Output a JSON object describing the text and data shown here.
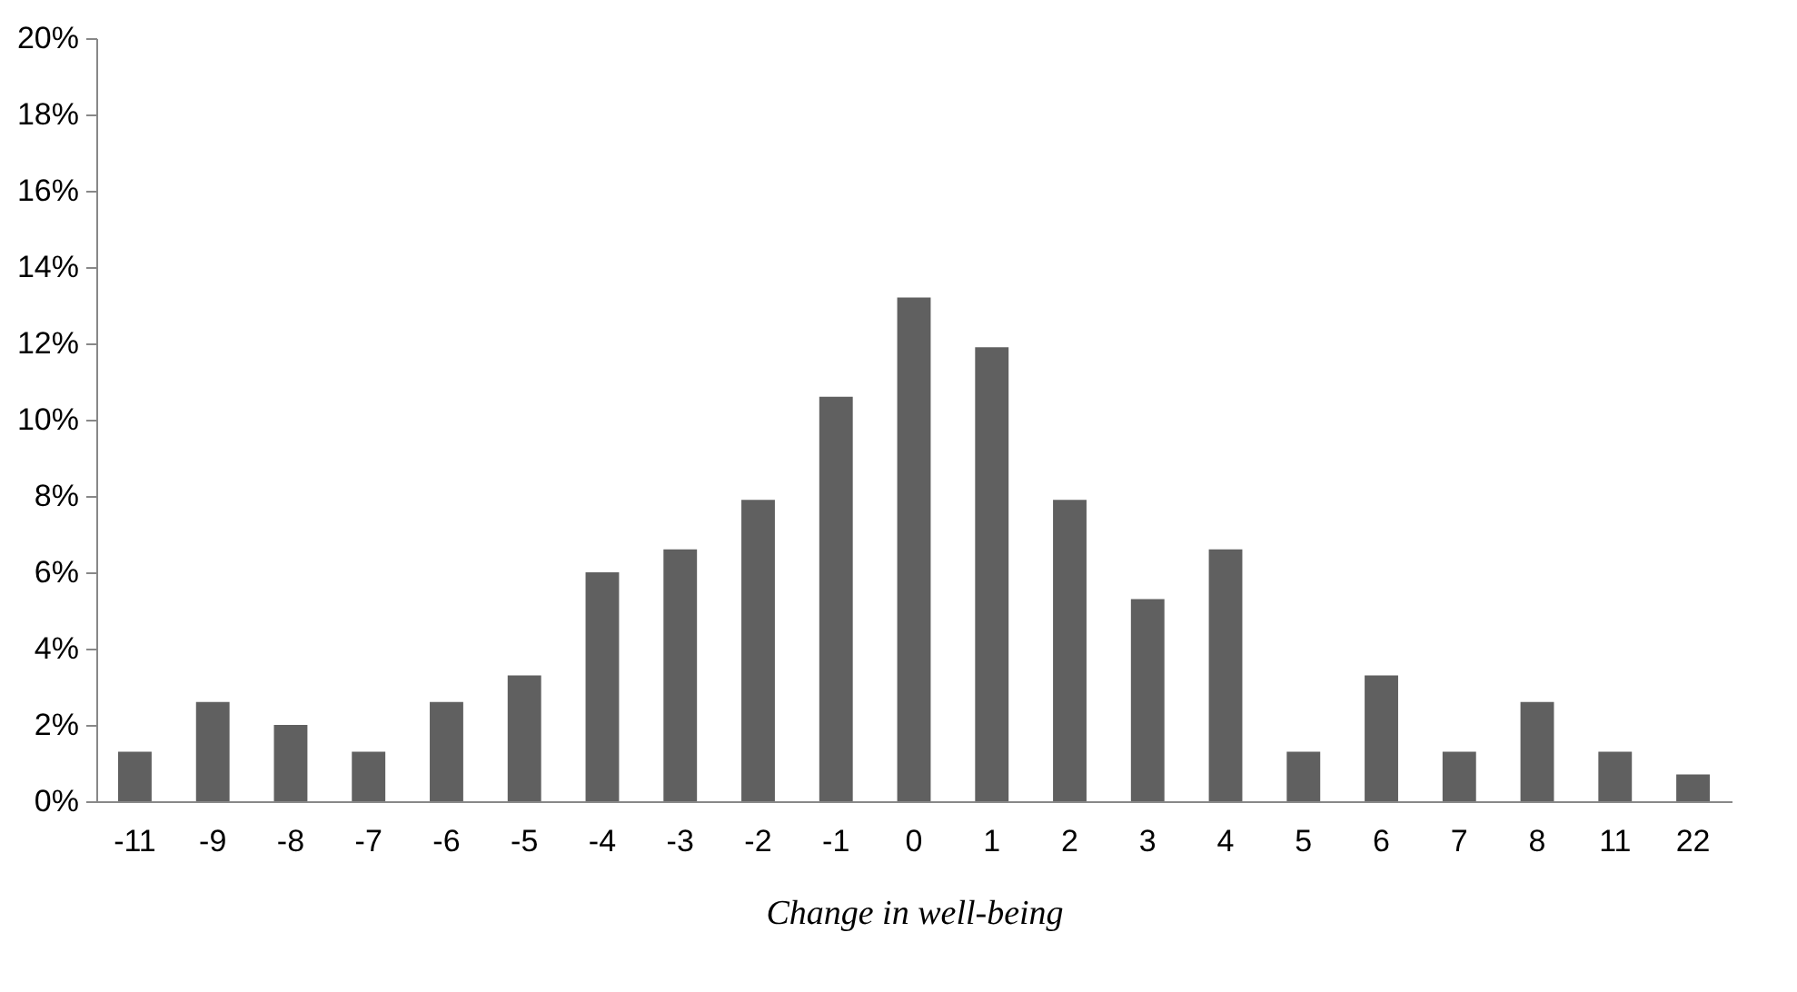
{
  "chart_data": {
    "type": "bar",
    "xlabel": "Change in well-being",
    "categories": [
      "-11",
      "-9",
      "-8",
      "-7",
      "-6",
      "-5",
      "-4",
      "-3",
      "-2",
      "-1",
      "0",
      "1",
      "2",
      "3",
      "4",
      "5",
      "6",
      "7",
      "8",
      "11",
      "22"
    ],
    "values": [
      1.3,
      2.6,
      2.0,
      1.3,
      2.6,
      3.3,
      6.0,
      6.6,
      7.9,
      10.6,
      13.2,
      11.9,
      7.9,
      5.3,
      6.6,
      1.3,
      3.3,
      1.3,
      2.6,
      1.3,
      0.7
    ],
    "color": "#606060",
    "ylim": [
      0,
      20
    ],
    "yticks": [
      {
        "value": 0,
        "label": "0%"
      },
      {
        "value": 2,
        "label": "2%"
      },
      {
        "value": 4,
        "label": "4%"
      },
      {
        "value": 6,
        "label": "6%"
      },
      {
        "value": 8,
        "label": "8%"
      },
      {
        "value": 10,
        "label": "10%"
      },
      {
        "value": 12,
        "label": "12%"
      },
      {
        "value": 14,
        "label": "14%"
      },
      {
        "value": 16,
        "label": "16%"
      },
      {
        "value": 18,
        "label": "18%"
      },
      {
        "value": 20,
        "label": "20%"
      }
    ],
    "grid": false
  }
}
